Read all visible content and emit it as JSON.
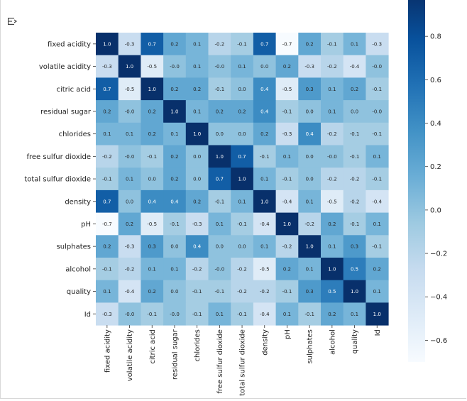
{
  "toolbar": {
    "icon": "output-toggle-icon"
  },
  "chart_data": {
    "type": "heatmap",
    "title": "",
    "labels": [
      "fixed acidity",
      "volatile acidity",
      "citric acid",
      "residual sugar",
      "chlorides",
      "free sulfur dioxide",
      "total sulfur dioxide",
      "density",
      "pH",
      "sulphates",
      "alcohol",
      "quality",
      "Id"
    ],
    "values": [
      [
        1.0,
        -0.3,
        0.7,
        0.2,
        0.1,
        -0.2,
        -0.1,
        0.7,
        -0.7,
        0.2,
        -0.1,
        0.1,
        -0.3
      ],
      [
        -0.3,
        1.0,
        -0.5,
        -0.0,
        0.1,
        -0.0,
        0.1,
        0.0,
        0.2,
        -0.3,
        -0.2,
        -0.4,
        -0.0
      ],
      [
        0.7,
        -0.5,
        1.0,
        0.2,
        0.2,
        -0.1,
        0.0,
        0.4,
        -0.5,
        0.3,
        0.1,
        0.2,
        -0.1
      ],
      [
        0.2,
        -0.0,
        0.2,
        1.0,
        0.1,
        0.2,
        0.2,
        0.4,
        -0.1,
        0.0,
        0.1,
        0.0,
        -0.0
      ],
      [
        0.1,
        0.1,
        0.2,
        0.1,
        1.0,
        0.0,
        0.0,
        0.2,
        -0.3,
        0.4,
        -0.2,
        -0.1,
        -0.1
      ],
      [
        -0.2,
        -0.0,
        -0.1,
        0.2,
        0.0,
        1.0,
        0.7,
        -0.1,
        0.1,
        0.0,
        -0.0,
        -0.1,
        0.1
      ],
      [
        -0.1,
        0.1,
        0.0,
        0.2,
        0.0,
        0.7,
        1.0,
        0.1,
        -0.1,
        0.0,
        -0.2,
        -0.2,
        -0.1
      ],
      [
        0.7,
        0.0,
        0.4,
        0.4,
        0.2,
        -0.1,
        0.1,
        1.0,
        -0.4,
        0.1,
        -0.5,
        -0.2,
        -0.4
      ],
      [
        -0.7,
        0.2,
        -0.5,
        -0.1,
        -0.3,
        0.1,
        -0.1,
        -0.4,
        1.0,
        -0.2,
        0.2,
        -0.1,
        0.1
      ],
      [
        0.2,
        -0.3,
        0.3,
        0.0,
        0.4,
        0.0,
        0.0,
        0.1,
        -0.2,
        1.0,
        0.1,
        0.3,
        -0.1
      ],
      [
        -0.1,
        -0.2,
        0.1,
        0.1,
        -0.2,
        -0.0,
        -0.2,
        -0.5,
        0.2,
        0.1,
        1.0,
        0.5,
        0.2
      ],
      [
        0.1,
        -0.4,
        0.2,
        0.0,
        -0.1,
        -0.1,
        -0.2,
        -0.2,
        -0.1,
        0.3,
        0.5,
        1.0,
        0.1
      ],
      [
        -0.3,
        -0.0,
        -0.1,
        -0.0,
        -0.1,
        0.1,
        -0.1,
        -0.4,
        0.1,
        -0.1,
        0.2,
        0.1,
        1.0
      ]
    ],
    "colormap": "Blues",
    "vmin": -0.7,
    "vmax": 1.0,
    "colorbar_ticks": [
      "0.8",
      "0.6",
      "0.4",
      "0.2",
      "0.0",
      "−0.2",
      "−0.4",
      "−0.6"
    ],
    "colorbar_tick_values": [
      0.8,
      0.6,
      0.4,
      0.2,
      0.0,
      -0.2,
      -0.4,
      -0.6
    ],
    "annotations_format": "1 decimal"
  }
}
